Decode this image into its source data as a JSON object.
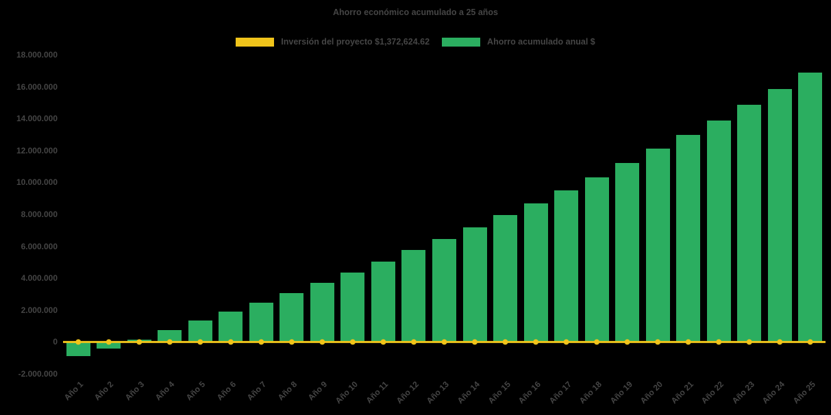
{
  "page": {
    "background_color": "#000000",
    "text_color": "#454545"
  },
  "chart_data": {
    "type": "bar",
    "title": "Ahorro económico acumulado a 25 años",
    "categories": [
      "Año 1",
      "Año 2",
      "Año 3",
      "Año 4",
      "Año 5",
      "Año 6",
      "Año 7",
      "Año 8",
      "Año 9",
      "Año 10",
      "Año 11",
      "Año 12",
      "Año 13",
      "Año 14",
      "Año 15",
      "Año 16",
      "Año 17",
      "Año 18",
      "Año 19",
      "Año 20",
      "Año 21",
      "Año 22",
      "Año 23",
      "Año 24",
      "Año 25"
    ],
    "series": [
      {
        "name": "Ahorro acumulado anual $",
        "type": "bar",
        "color": "#2BAE60",
        "values": [
          -900000,
          -400000,
          150000,
          750000,
          1350000,
          1900000,
          2450000,
          3050000,
          3700000,
          4350000,
          5050000,
          5750000,
          6450000,
          7200000,
          7950000,
          8700000,
          9500000,
          10300000,
          11200000,
          12100000,
          13000000,
          13900000,
          14850000,
          15850000,
          16900000
        ]
      },
      {
        "name": "Inversión del proyecto $1,372,624.62",
        "type": "line",
        "color": "#F0C41B",
        "values": [
          0,
          0,
          0,
          0,
          0,
          0,
          0,
          0,
          0,
          0,
          0,
          0,
          0,
          0,
          0,
          0,
          0,
          0,
          0,
          0,
          0,
          0,
          0,
          0,
          0
        ]
      }
    ],
    "ylim": [
      -2000000,
      18000000
    ],
    "yticks": [
      18000000,
      16000000,
      14000000,
      12000000,
      10000000,
      8000000,
      6000000,
      4000000,
      2000000,
      0,
      -2000000
    ],
    "ytick_labels": [
      "18.000.000",
      "16.000.000",
      "14.000.000",
      "12.000.000",
      "10.000.000",
      "8.000.000",
      "6.000.000",
      "4.000.000",
      "2.000.000",
      "0",
      "-2.000.000"
    ],
    "grid": false,
    "legend_position": "top",
    "xlabel": "",
    "ylabel": ""
  },
  "legend": {
    "items": [
      {
        "label": "Inversión del proyecto $1,372,624.62",
        "color": "#F0C41B"
      },
      {
        "label": "Ahorro acumulado anual $",
        "color": "#2BAE60"
      }
    ]
  }
}
